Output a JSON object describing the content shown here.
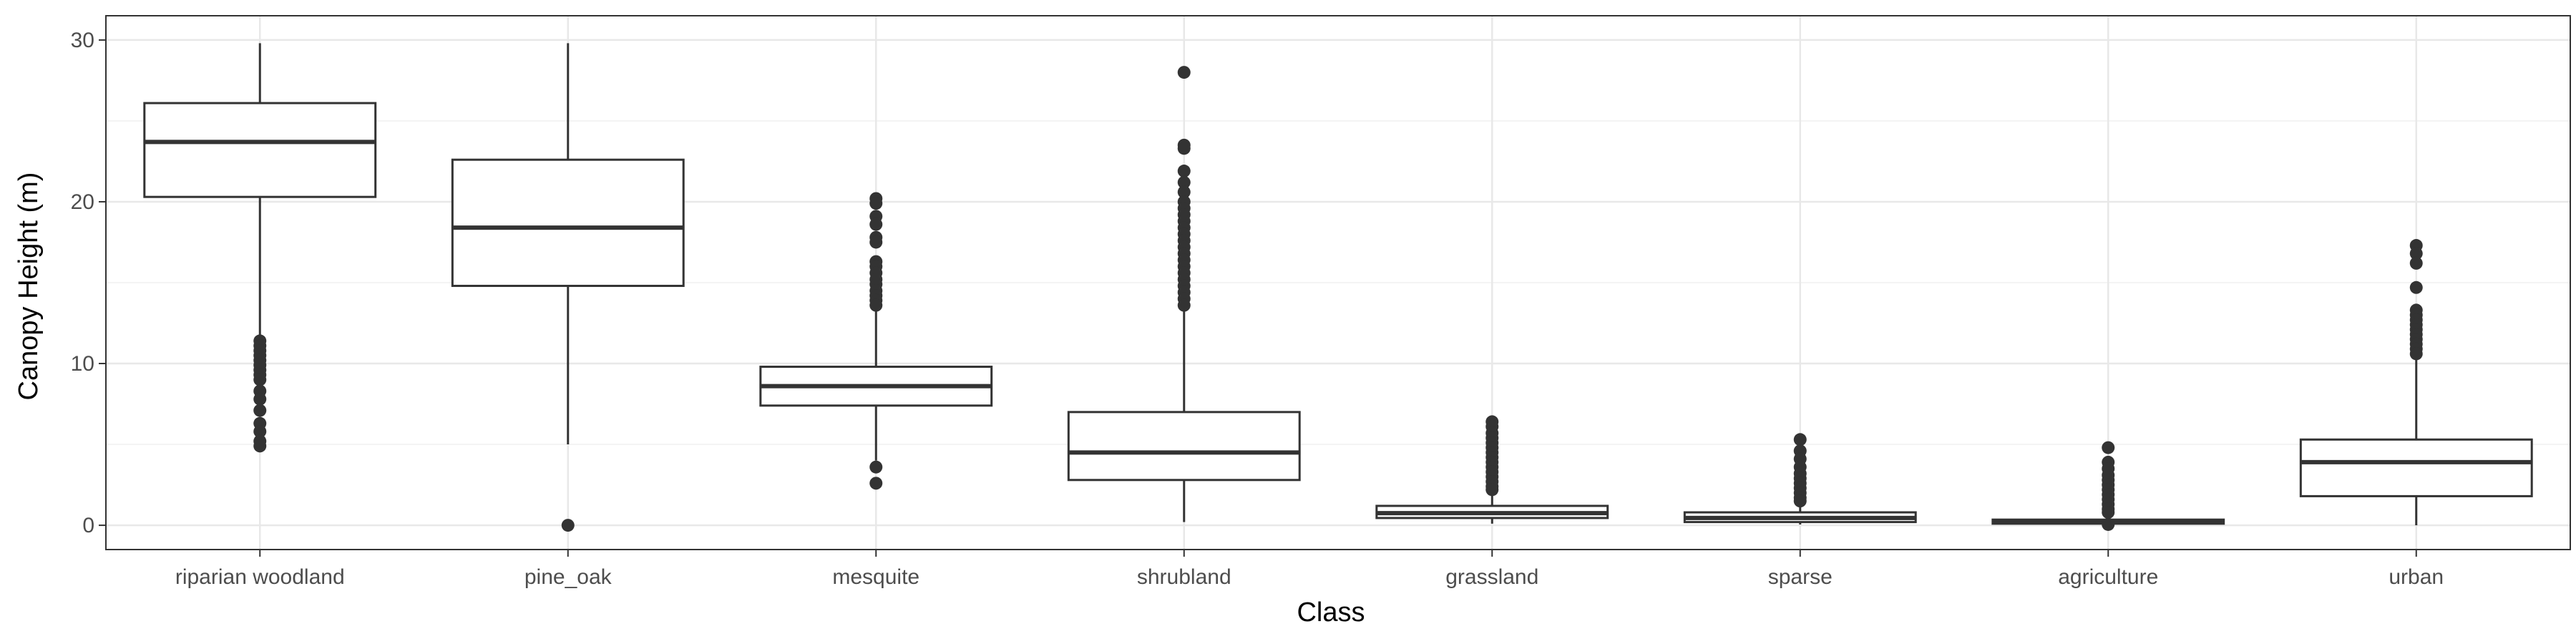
{
  "chart_data": {
    "type": "boxplot",
    "xlabel": "Class",
    "ylabel": "Canopy Height (m)",
    "ylim": [
      -1.5,
      31.5
    ],
    "yticks": [
      0,
      10,
      20,
      30
    ],
    "grid": true,
    "categories": [
      "riparian woodland",
      "pine_oak",
      "mesquite",
      "shrubland",
      "grassland",
      "sparse",
      "agriculture",
      "urban"
    ],
    "boxes": [
      {
        "q1": 20.3,
        "median": 23.7,
        "q3": 26.1,
        "whisker_low": 11.6,
        "whisker_high": 29.8,
        "outliers": [
          11.4,
          11.1,
          10.8,
          10.5,
          10.2,
          9.9,
          9.6,
          9.3,
          9.0,
          8.3,
          7.8,
          7.1,
          6.3,
          5.8,
          5.2,
          4.9
        ]
      },
      {
        "q1": 14.8,
        "median": 18.4,
        "q3": 22.6,
        "whisker_low": 5.0,
        "whisker_high": 29.8,
        "outliers": [
          0.0
        ]
      },
      {
        "q1": 7.4,
        "median": 8.6,
        "q3": 9.8,
        "whisker_low": 4.0,
        "whisker_high": 13.4,
        "outliers": [
          20.2,
          19.9,
          19.1,
          18.6,
          17.8,
          17.5,
          16.3,
          16.0,
          15.6,
          15.2,
          14.9,
          14.5,
          14.2,
          13.9,
          13.6,
          3.6,
          2.6
        ]
      },
      {
        "q1": 2.8,
        "median": 4.5,
        "q3": 7.0,
        "whisker_low": 0.2,
        "whisker_high": 13.3,
        "outliers": [
          28.0,
          23.5,
          23.3,
          21.9,
          21.2,
          20.6,
          20.0,
          19.6,
          19.2,
          18.8,
          18.4,
          18.0,
          17.6,
          17.2,
          16.8,
          16.4,
          16.0,
          15.6,
          15.2,
          14.8,
          14.4,
          14.0,
          13.6
        ]
      },
      {
        "q1": 0.45,
        "median": 0.75,
        "q3": 1.2,
        "whisker_low": 0.1,
        "whisker_high": 2.1,
        "outliers": [
          6.4,
          6.1,
          5.7,
          5.4,
          5.1,
          4.8,
          4.5,
          4.2,
          3.9,
          3.6,
          3.3,
          3.0,
          2.7,
          2.4,
          2.2
        ]
      },
      {
        "q1": 0.2,
        "median": 0.45,
        "q3": 0.8,
        "whisker_low": 0.05,
        "whisker_high": 1.3,
        "outliers": [
          5.3,
          4.6,
          4.1,
          3.6,
          3.2,
          2.9,
          2.6,
          2.3,
          2.0,
          1.7,
          1.5
        ]
      },
      {
        "q1": 0.1,
        "median": 0.2,
        "q3": 0.35,
        "whisker_low": 0.0,
        "whisker_high": 0.6,
        "outliers": [
          4.8,
          3.9,
          3.5,
          3.1,
          2.8,
          2.5,
          2.2,
          1.9,
          1.6,
          1.3,
          1.0,
          0.8,
          0.05
        ]
      },
      {
        "q1": 1.8,
        "median": 3.9,
        "q3": 5.3,
        "whisker_low": 0.0,
        "whisker_high": 10.3,
        "outliers": [
          17.3,
          16.8,
          16.2,
          14.7,
          13.3,
          13.0,
          12.7,
          12.4,
          12.1,
          11.8,
          11.5,
          11.2,
          10.9,
          10.6
        ]
      }
    ]
  }
}
